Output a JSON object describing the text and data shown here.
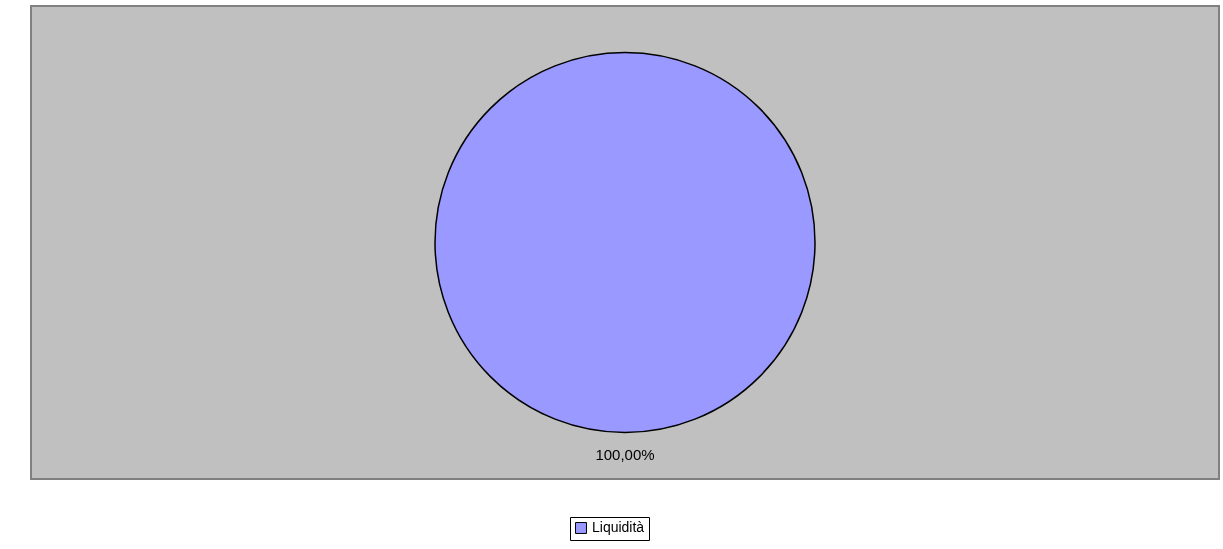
{
  "chart_data": {
    "type": "pie",
    "categories": [
      "Liquidità"
    ],
    "values": [
      100
    ],
    "colors": [
      "#9999ff"
    ],
    "value_labels": [
      "100,00%"
    ],
    "legend": "bottom"
  }
}
